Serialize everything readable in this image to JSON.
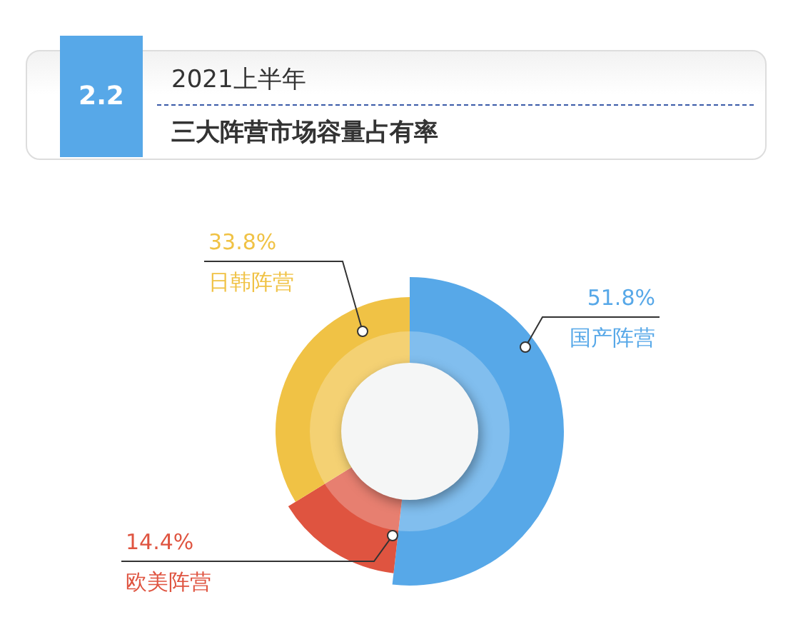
{
  "chart_data": {
    "type": "donut",
    "title": "2021上半年",
    "subtitle": "三大阵营市场容量占有率",
    "annotations": [
      "2.2"
    ],
    "categories": [
      "国产阵营",
      "欧美阵营",
      "日韩阵营"
    ],
    "values": [
      51.8,
      14.4,
      33.8
    ],
    "value_labels": [
      "51.8%",
      "14.4%",
      "33.8%"
    ],
    "colors": [
      "#57a8e8",
      "#df5440",
      "#f0c245"
    ],
    "legend": false
  }
}
